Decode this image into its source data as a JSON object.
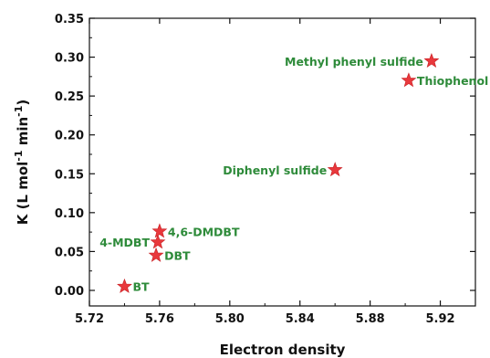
{
  "chart_data": {
    "type": "scatter",
    "title": "",
    "xlabel": "Electron density",
    "ylabel": "K (L mol-1 min-1)",
    "ylabel_parts": {
      "prefix": "K (L mol",
      "exp1": "-1",
      "middle": " min",
      "exp2": "-1",
      "suffix": ")"
    },
    "xlim": [
      5.72,
      5.94
    ],
    "ylim": [
      -0.02,
      0.35
    ],
    "x_ticks": [
      5.72,
      5.76,
      5.8,
      5.84,
      5.88,
      5.92
    ],
    "x_tick_labels": [
      "5.72",
      "5.76",
      "5.80",
      "5.84",
      "5.88",
      "5.92"
    ],
    "y_ticks": [
      0.0,
      0.05,
      0.1,
      0.15,
      0.2,
      0.25,
      0.3,
      0.35
    ],
    "y_tick_labels": [
      "0.00",
      "0.05",
      "0.10",
      "0.15",
      "0.20",
      "0.25",
      "0.30",
      "0.35"
    ],
    "marker": "star",
    "marker_color": "#e8383c",
    "label_color": "#2e8b3a",
    "points": [
      {
        "label": "BT",
        "x": 5.74,
        "y": 0.005,
        "label_side": "right"
      },
      {
        "label": "DBT",
        "x": 5.758,
        "y": 0.045,
        "label_side": "right"
      },
      {
        "label": "4-MDBT",
        "x": 5.759,
        "y": 0.062,
        "label_side": "left"
      },
      {
        "label": "4,6-DMDBT",
        "x": 5.76,
        "y": 0.076,
        "label_side": "right"
      },
      {
        "label": "Diphenyl sulfide",
        "x": 5.86,
        "y": 0.155,
        "label_side": "left"
      },
      {
        "label": "Thiophenol",
        "x": 5.902,
        "y": 0.27,
        "label_side": "right"
      },
      {
        "label": "Methyl phenyl sulfide",
        "x": 5.915,
        "y": 0.295,
        "label_side": "left"
      }
    ]
  }
}
